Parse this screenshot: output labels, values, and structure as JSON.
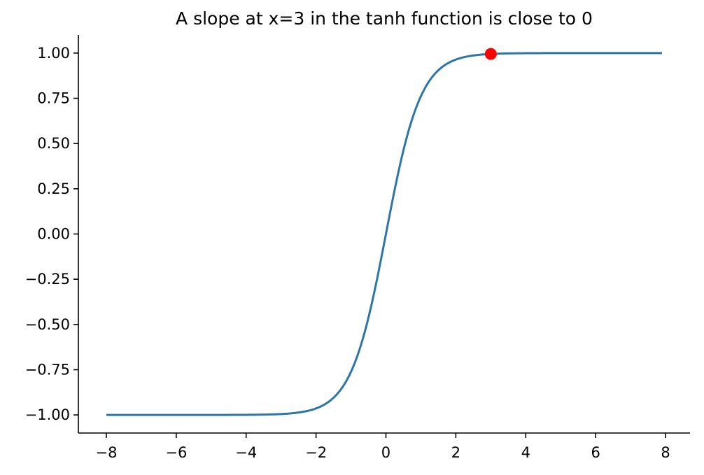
{
  "chart_data": {
    "type": "line",
    "title": "A slope at x=3 in the tanh function is close to 0",
    "xlabel": "",
    "ylabel": "",
    "xlim": [
      -8.8,
      8.7
    ],
    "ylim": [
      -1.1,
      1.1
    ],
    "x_ticks": [
      -8,
      -6,
      -4,
      -2,
      0,
      2,
      4,
      6,
      8
    ],
    "x_tick_labels": [
      "−8",
      "−6",
      "−4",
      "−2",
      "0",
      "2",
      "4",
      "6",
      "8"
    ],
    "y_ticks": [
      -1.0,
      -0.75,
      -0.5,
      -0.25,
      0.0,
      0.25,
      0.5,
      0.75,
      1.0
    ],
    "y_tick_labels": [
      "−1.00",
      "−0.75",
      "−0.50",
      "−0.25",
      "0.00",
      "0.25",
      "0.50",
      "0.75",
      "1.00"
    ],
    "grid": false,
    "spines": [
      "left",
      "bottom"
    ],
    "series": [
      {
        "function": "tanh(x)",
        "x_range": [
          -8,
          7.9
        ],
        "color": "#2e75a8"
      }
    ],
    "highlight_point": {
      "x": 3,
      "y": 0.995,
      "color": "#ff0000"
    }
  }
}
